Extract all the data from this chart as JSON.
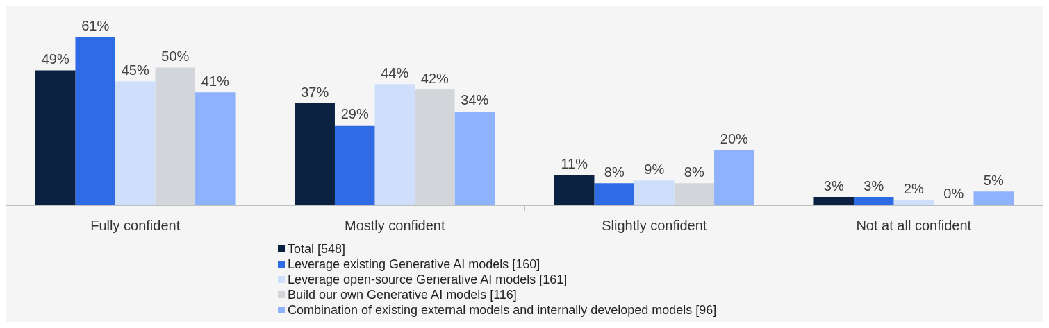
{
  "chart_data": {
    "type": "bar",
    "categories": [
      "Fully confident",
      "Mostly confident",
      "Slightly confident",
      "Not at all confident"
    ],
    "series": [
      {
        "name": "Total [548]",
        "color": "#0b2141",
        "values": [
          49,
          37,
          11,
          3
        ],
        "value_labels": [
          "49%",
          "37%",
          "11%",
          "3%"
        ]
      },
      {
        "name": "Leverage existing Generative AI models [160]",
        "color": "#2f6be4",
        "values": [
          61,
          29,
          8,
          3
        ],
        "value_labels": [
          "61%",
          "29%",
          "8%",
          "3%"
        ]
      },
      {
        "name": "Leverage open-source Generative AI models [161]",
        "color": "#cfdffb",
        "values": [
          45,
          44,
          9,
          2
        ],
        "value_labels": [
          "45%",
          "44%",
          "9%",
          "2%"
        ]
      },
      {
        "name": "Build our own Generative AI models [116]",
        "color": "#d2d5da",
        "values": [
          50,
          42,
          8,
          0
        ],
        "value_labels": [
          "50%",
          "42%",
          "8%",
          "0%"
        ]
      },
      {
        "name": "Combination of existing external models and internally developed models [96]",
        "color": "#8eb2fc",
        "values": [
          41,
          34,
          20,
          5
        ],
        "value_labels": [
          "41%",
          "34%",
          "20%",
          "5%"
        ]
      }
    ],
    "legend": "bottom",
    "grid": false
  }
}
